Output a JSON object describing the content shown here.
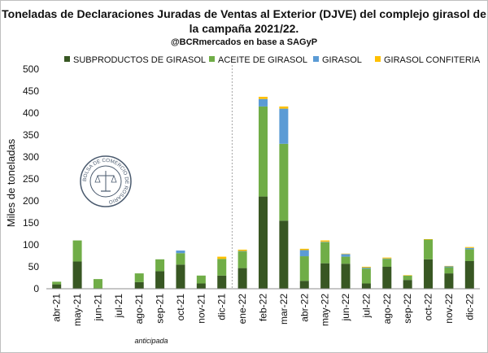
{
  "chart_data": {
    "type": "bar",
    "stacked": true,
    "title": "Toneladas de Declaraciones Juradas de Ventas al Exterior (DJVE) del complejo girasol de la campaña 2021/22.",
    "subtitle": "@BCRmercados en base a SAGyP",
    "ylabel": "Miles de toneladas",
    "ylim": [
      0,
      500
    ],
    "yticks": [
      0,
      50,
      100,
      150,
      200,
      250,
      300,
      350,
      400,
      450,
      500
    ],
    "grid": false,
    "legend_position": "top",
    "annotation": "anticipada",
    "categories": [
      "abr-21",
      "may-21",
      "jun-21",
      "jul-21",
      "ago-21",
      "sep-21",
      "oct-21",
      "nov-21",
      "dic-21",
      "ene-22",
      "feb-22",
      "mar-22",
      "abr-22",
      "may-22",
      "jun-22",
      "jul-22",
      "ago-22",
      "sep-22",
      "oct-22",
      "nov-22",
      "dic-22"
    ],
    "series": [
      {
        "name": "SUBPRODUCTOS DE GIRASOL",
        "color": "#385723",
        "values": [
          10,
          62,
          0,
          0,
          15,
          40,
          55,
          12,
          30,
          47,
          210,
          155,
          18,
          58,
          57,
          12,
          50,
          20,
          67,
          35,
          63
        ]
      },
      {
        "name": "ACEITE DE GIRASOL",
        "color": "#70ad47",
        "values": [
          6,
          48,
          22,
          0,
          20,
          27,
          26,
          18,
          38,
          38,
          205,
          175,
          56,
          48,
          16,
          34,
          18,
          10,
          45,
          14,
          27
        ]
      },
      {
        "name": "GIRASOL",
        "color": "#5b9bd5",
        "values": [
          0,
          0,
          0,
          0,
          0,
          0,
          6,
          0,
          0,
          1,
          17,
          80,
          14,
          1,
          6,
          2,
          1,
          0,
          0,
          2,
          3
        ]
      },
      {
        "name": "GIRASOL CONFITERIA",
        "color": "#ffc000",
        "values": [
          0,
          0,
          0,
          0,
          0,
          0,
          0,
          0,
          5,
          3,
          5,
          5,
          3,
          3,
          1,
          2,
          2,
          1,
          1,
          1,
          2
        ]
      }
    ]
  },
  "seal": {
    "text": "BOLSA DE COMERCIO DE ROSARIO"
  }
}
